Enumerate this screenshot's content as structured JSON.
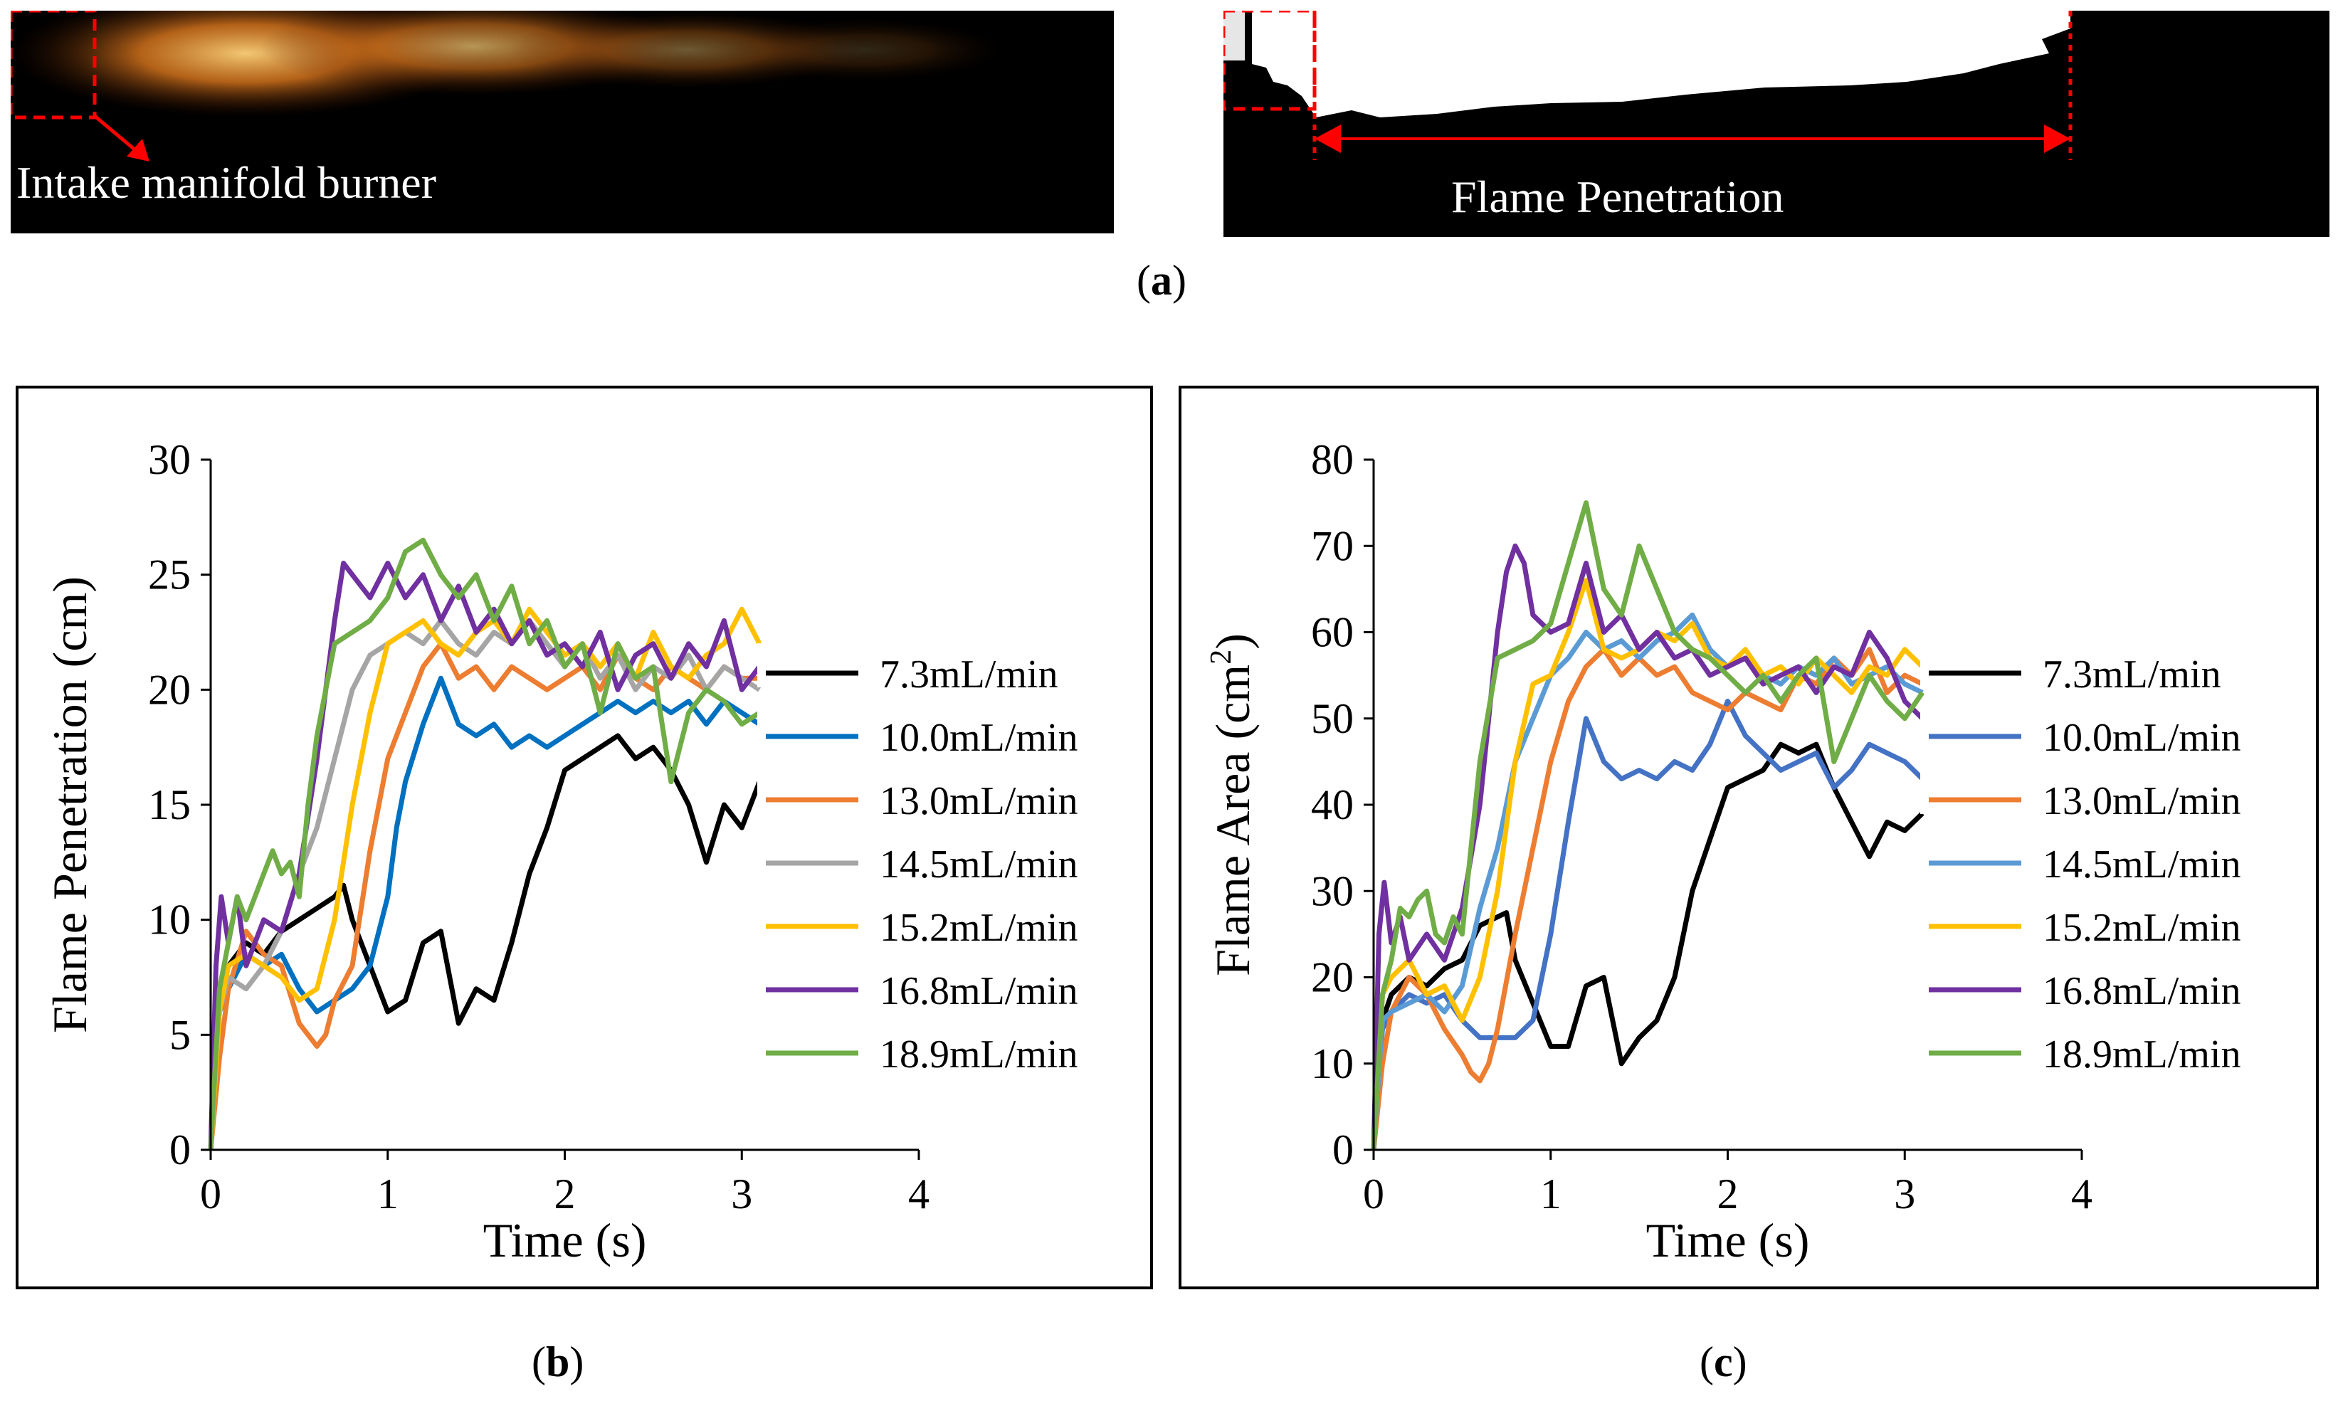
{
  "figure": {
    "panel_a_label": "a",
    "panel_b_label": "b",
    "panel_c_label": "c",
    "photo_left_caption": "Intake manifold burner",
    "photo_right_caption": "Flame Penetration"
  },
  "colors": {
    "7.3mL/min": "#000000",
    "10.0mL/min_b": "#0070c0",
    "10.0mL/min_c": "#4472c4",
    "13.0mL/min": "#ed7d31",
    "14.5mL/min_b": "#a5a5a5",
    "14.5mL/min_c": "#5b9bd5",
    "15.2mL/min": "#ffc000",
    "16.8mL/min": "#7030a0",
    "18.9mL/min": "#70ad47",
    "annotation_red": "#ff0000"
  },
  "chart_data": [
    {
      "type": "line",
      "panel": "b",
      "title": "",
      "xlabel": "Time (s)",
      "ylabel": "Flame Penetration (cm)",
      "xlim": [
        0,
        4
      ],
      "ylim": [
        0,
        30
      ],
      "xticks": [
        "0",
        "1",
        "2",
        "3",
        "4"
      ],
      "yticks": [
        "0",
        "5",
        "10",
        "15",
        "20",
        "25",
        "30"
      ],
      "legend_position": "right",
      "grid": false,
      "series": [
        {
          "name": "7.3mL/min",
          "color": "#000000",
          "x": [
            0,
            0.05,
            0.1,
            0.2,
            0.3,
            0.4,
            0.5,
            0.6,
            0.7,
            0.75,
            0.8,
            0.9,
            1.0,
            1.1,
            1.2,
            1.3,
            1.4,
            1.5,
            1.6,
            1.7,
            1.8,
            1.9,
            2.0,
            2.1,
            2.2,
            2.3,
            2.4,
            2.5,
            2.6,
            2.7,
            2.8,
            2.9,
            3.0,
            3.1
          ],
          "y": [
            0,
            7,
            8,
            9,
            8.5,
            9.5,
            10,
            10.5,
            11,
            11.5,
            10,
            8,
            6,
            6.5,
            9,
            9.5,
            5.5,
            7,
            6.5,
            9,
            12,
            14,
            16.5,
            17,
            17.5,
            18,
            17,
            17.5,
            16.5,
            15,
            12.5,
            15,
            14,
            16
          ]
        },
        {
          "name": "10.0mL/min",
          "color": "#0070c0",
          "x": [
            0,
            0.05,
            0.1,
            0.2,
            0.3,
            0.4,
            0.5,
            0.6,
            0.7,
            0.8,
            0.9,
            1.0,
            1.05,
            1.1,
            1.2,
            1.3,
            1.4,
            1.5,
            1.6,
            1.7,
            1.8,
            1.9,
            2.0,
            2.1,
            2.2,
            2.3,
            2.4,
            2.5,
            2.6,
            2.7,
            2.8,
            2.9,
            3.0,
            3.1
          ],
          "y": [
            0,
            6,
            7,
            8.5,
            8,
            8.5,
            7,
            6,
            6.5,
            7,
            8,
            11,
            14,
            16,
            18.5,
            20.5,
            18.5,
            18,
            18.5,
            17.5,
            18,
            17.5,
            18,
            18.5,
            19,
            19.5,
            19,
            19.5,
            19,
            19.5,
            18.5,
            19.5,
            19,
            18.5
          ]
        },
        {
          "name": "13.0mL/min",
          "color": "#ed7d31",
          "x": [
            0,
            0.05,
            0.1,
            0.2,
            0.3,
            0.4,
            0.5,
            0.55,
            0.6,
            0.65,
            0.7,
            0.8,
            0.9,
            1.0,
            1.1,
            1.2,
            1.3,
            1.4,
            1.5,
            1.6,
            1.7,
            1.8,
            1.9,
            2.0,
            2.1,
            2.2,
            2.3,
            2.4,
            2.5,
            2.6,
            2.7,
            2.8,
            2.9,
            3.0,
            3.1
          ],
          "y": [
            0,
            4,
            7,
            9.5,
            8.5,
            8,
            5.5,
            5,
            4.5,
            5,
            6.5,
            8,
            13,
            17,
            19,
            21,
            22,
            20.5,
            21,
            20,
            21,
            20.5,
            20,
            20.5,
            21,
            20,
            21.5,
            20.5,
            20,
            21,
            20.5,
            20,
            21,
            20.5,
            20.5
          ]
        },
        {
          "name": "14.5mL/min",
          "color": "#a5a5a5",
          "x": [
            0,
            0.05,
            0.1,
            0.2,
            0.3,
            0.4,
            0.5,
            0.6,
            0.7,
            0.8,
            0.9,
            1.0,
            1.1,
            1.2,
            1.3,
            1.4,
            1.5,
            1.6,
            1.7,
            1.8,
            1.9,
            2.0,
            2.1,
            2.2,
            2.3,
            2.4,
            2.5,
            2.6,
            2.7,
            2.8,
            2.9,
            3.0,
            3.1
          ],
          "y": [
            0,
            6,
            7.5,
            7,
            8,
            9.5,
            12,
            14,
            17,
            20,
            21.5,
            22,
            22.5,
            22,
            23,
            22,
            21.5,
            22.5,
            22,
            23,
            22,
            21,
            22,
            20.5,
            21.5,
            20,
            21,
            20.5,
            21.5,
            20,
            21,
            20.5,
            20
          ]
        },
        {
          "name": "15.2mL/min",
          "color": "#ffc000",
          "x": [
            0,
            0.05,
            0.1,
            0.2,
            0.3,
            0.4,
            0.5,
            0.6,
            0.7,
            0.8,
            0.9,
            1.0,
            1.1,
            1.2,
            1.3,
            1.4,
            1.5,
            1.6,
            1.7,
            1.8,
            1.9,
            2.0,
            2.1,
            2.2,
            2.3,
            2.4,
            2.5,
            2.6,
            2.7,
            2.8,
            2.9,
            3.0,
            3.1
          ],
          "y": [
            0,
            6,
            8,
            8.5,
            8,
            7.5,
            6.5,
            7,
            10,
            15,
            19,
            22,
            22.5,
            23,
            22,
            21.5,
            22.5,
            23,
            22,
            23.5,
            22.5,
            21.5,
            22,
            21,
            22,
            20.5,
            22.5,
            21,
            20.5,
            21.5,
            22,
            23.5,
            22
          ]
        },
        {
          "name": "16.8mL/min",
          "color": "#7030a0",
          "x": [
            0,
            0.03,
            0.06,
            0.1,
            0.15,
            0.2,
            0.3,
            0.4,
            0.5,
            0.6,
            0.7,
            0.75,
            0.8,
            0.9,
            1.0,
            1.1,
            1.2,
            1.3,
            1.4,
            1.5,
            1.6,
            1.7,
            1.8,
            1.9,
            2.0,
            2.1,
            2.2,
            2.3,
            2.4,
            2.5,
            2.6,
            2.7,
            2.8,
            2.9,
            3.0,
            3.1
          ],
          "y": [
            0,
            8,
            11,
            9,
            11,
            8,
            10,
            9.5,
            12,
            17,
            23,
            25.5,
            25,
            24,
            25.5,
            24,
            25,
            23,
            24.5,
            22.5,
            23.5,
            22,
            23,
            21.5,
            22,
            21,
            22.5,
            20,
            21.5,
            22,
            20.5,
            22,
            21,
            23,
            20,
            21
          ]
        },
        {
          "name": "18.9mL/min",
          "color": "#70ad47",
          "x": [
            0,
            0.05,
            0.1,
            0.15,
            0.2,
            0.3,
            0.35,
            0.4,
            0.45,
            0.5,
            0.55,
            0.6,
            0.7,
            0.8,
            0.9,
            1.0,
            1.1,
            1.2,
            1.3,
            1.4,
            1.5,
            1.6,
            1.7,
            1.8,
            1.9,
            2.0,
            2.1,
            2.2,
            2.3,
            2.4,
            2.5,
            2.6,
            2.7,
            2.8,
            2.9,
            3.0,
            3.1
          ],
          "y": [
            0,
            7,
            9,
            11,
            10,
            12,
            13,
            12,
            12.5,
            11,
            15,
            18,
            22,
            22.5,
            23,
            24,
            26,
            26.5,
            25,
            24,
            25,
            23,
            24.5,
            22,
            23,
            21,
            22,
            19,
            22,
            20.5,
            21,
            16,
            19,
            20,
            19.5,
            18.5,
            19
          ]
        }
      ]
    },
    {
      "type": "line",
      "panel": "c",
      "title": "",
      "xlabel": "Time (s)",
      "ylabel": "Flame Area (cm",
      "ylabel_sup": "2",
      "ylabel_end": ")",
      "xlim": [
        0,
        4
      ],
      "ylim": [
        0,
        80
      ],
      "xticks": [
        "0",
        "1",
        "2",
        "3",
        "4"
      ],
      "yticks": [
        "0",
        "10",
        "20",
        "30",
        "40",
        "50",
        "60",
        "70",
        "80"
      ],
      "legend_position": "right",
      "grid": false,
      "series": [
        {
          "name": "7.3mL/min",
          "color": "#000000",
          "x": [
            0,
            0.05,
            0.1,
            0.2,
            0.3,
            0.4,
            0.5,
            0.6,
            0.7,
            0.75,
            0.8,
            0.9,
            1.0,
            1.1,
            1.2,
            1.3,
            1.4,
            1.5,
            1.6,
            1.7,
            1.8,
            1.9,
            2.0,
            2.1,
            2.2,
            2.3,
            2.4,
            2.5,
            2.6,
            2.7,
            2.8,
            2.9,
            3.0,
            3.1
          ],
          "y": [
            0,
            15,
            18,
            20,
            19,
            21,
            22,
            26,
            27,
            27.5,
            22,
            17,
            12,
            12,
            19,
            20,
            10,
            13,
            15,
            20,
            30,
            36,
            42,
            43,
            44,
            47,
            46,
            47,
            42,
            38,
            34,
            38,
            37,
            39
          ]
        },
        {
          "name": "10.0mL/min",
          "color": "#4472c4",
          "x": [
            0,
            0.05,
            0.1,
            0.2,
            0.3,
            0.4,
            0.5,
            0.6,
            0.7,
            0.8,
            0.9,
            1.0,
            1.1,
            1.2,
            1.3,
            1.4,
            1.5,
            1.6,
            1.7,
            1.8,
            1.9,
            2.0,
            2.1,
            2.2,
            2.3,
            2.4,
            2.5,
            2.6,
            2.7,
            2.8,
            2.9,
            3.0,
            3.1
          ],
          "y": [
            0,
            14,
            16,
            18,
            17,
            18,
            15,
            13,
            13,
            13,
            15,
            25,
            38,
            50,
            45,
            43,
            44,
            43,
            45,
            44,
            47,
            52,
            48,
            46,
            44,
            45,
            46,
            42,
            44,
            47,
            46,
            45,
            43
          ]
        },
        {
          "name": "13.0mL/min",
          "color": "#ed7d31",
          "x": [
            0,
            0.05,
            0.1,
            0.2,
            0.3,
            0.4,
            0.5,
            0.55,
            0.6,
            0.65,
            0.7,
            0.8,
            0.9,
            1.0,
            1.1,
            1.2,
            1.3,
            1.4,
            1.5,
            1.6,
            1.7,
            1.8,
            1.9,
            2.0,
            2.1,
            2.2,
            2.3,
            2.4,
            2.5,
            2.6,
            2.7,
            2.8,
            2.9,
            3.0,
            3.1
          ],
          "y": [
            0,
            10,
            16,
            20,
            18,
            14,
            11,
            9,
            8,
            10,
            14,
            25,
            35,
            45,
            52,
            56,
            58,
            55,
            57,
            55,
            56,
            53,
            52,
            51,
            53,
            52,
            51,
            55,
            54,
            57,
            55,
            58,
            53,
            55,
            54
          ]
        },
        {
          "name": "14.5mL/min",
          "color": "#5b9bd5",
          "x": [
            0,
            0.05,
            0.1,
            0.2,
            0.3,
            0.4,
            0.5,
            0.6,
            0.7,
            0.8,
            0.9,
            1.0,
            1.1,
            1.2,
            1.3,
            1.4,
            1.5,
            1.6,
            1.7,
            1.8,
            1.9,
            2.0,
            2.1,
            2.2,
            2.3,
            2.4,
            2.5,
            2.6,
            2.7,
            2.8,
            2.9,
            3.0,
            3.1
          ],
          "y": [
            0,
            15,
            16,
            17,
            18,
            16,
            19,
            28,
            35,
            45,
            50,
            55,
            57,
            60,
            58,
            59,
            57,
            59,
            60,
            62,
            58,
            56,
            57,
            55,
            54,
            56,
            55,
            57,
            54,
            55,
            56,
            54,
            53
          ]
        },
        {
          "name": "15.2mL/min",
          "color": "#ffc000",
          "x": [
            0,
            0.05,
            0.1,
            0.2,
            0.3,
            0.4,
            0.5,
            0.6,
            0.7,
            0.8,
            0.9,
            1.0,
            1.1,
            1.2,
            1.3,
            1.4,
            1.5,
            1.6,
            1.7,
            1.8,
            1.9,
            2.0,
            2.1,
            2.2,
            2.3,
            2.4,
            2.5,
            2.6,
            2.7,
            2.8,
            2.9,
            3.0,
            3.1
          ],
          "y": [
            0,
            18,
            20,
            22,
            18,
            19,
            15,
            20,
            30,
            45,
            54,
            55,
            60,
            66,
            58,
            57,
            58,
            60,
            59,
            61,
            57,
            56,
            58,
            55,
            56,
            54,
            57,
            55,
            53,
            56,
            55,
            58,
            56
          ]
        },
        {
          "name": "16.8mL/min",
          "color": "#7030a0",
          "x": [
            0,
            0.03,
            0.06,
            0.1,
            0.15,
            0.2,
            0.3,
            0.4,
            0.5,
            0.6,
            0.7,
            0.75,
            0.8,
            0.85,
            0.9,
            1.0,
            1.1,
            1.2,
            1.3,
            1.4,
            1.5,
            1.6,
            1.7,
            1.8,
            1.9,
            2.0,
            2.1,
            2.2,
            2.3,
            2.4,
            2.5,
            2.6,
            2.7,
            2.8,
            2.9,
            3.0,
            3.1
          ],
          "y": [
            0,
            25,
            31,
            24,
            27,
            22,
            25,
            22,
            28,
            40,
            60,
            67,
            70,
            68,
            62,
            60,
            61,
            68,
            60,
            62,
            58,
            60,
            57,
            58,
            55,
            56,
            57,
            54,
            55,
            56,
            53,
            56,
            55,
            60,
            57,
            52,
            50
          ]
        },
        {
          "name": "18.9mL/min",
          "color": "#70ad47",
          "x": [
            0,
            0.05,
            0.1,
            0.15,
            0.2,
            0.25,
            0.3,
            0.35,
            0.4,
            0.45,
            0.5,
            0.55,
            0.6,
            0.7,
            0.8,
            0.9,
            1.0,
            1.1,
            1.2,
            1.3,
            1.4,
            1.5,
            1.6,
            1.7,
            1.8,
            1.9,
            2.0,
            2.1,
            2.2,
            2.3,
            2.4,
            2.5,
            2.6,
            2.7,
            2.8,
            2.9,
            3.0,
            3.1
          ],
          "y": [
            0,
            18,
            22,
            28,
            27,
            29,
            30,
            25,
            24,
            27,
            25,
            35,
            45,
            57,
            58,
            59,
            61,
            68,
            75,
            65,
            62,
            70,
            65,
            60,
            58,
            57,
            55,
            53,
            55,
            52,
            55,
            57,
            45,
            50,
            55,
            52,
            50,
            53
          ]
        }
      ]
    }
  ]
}
